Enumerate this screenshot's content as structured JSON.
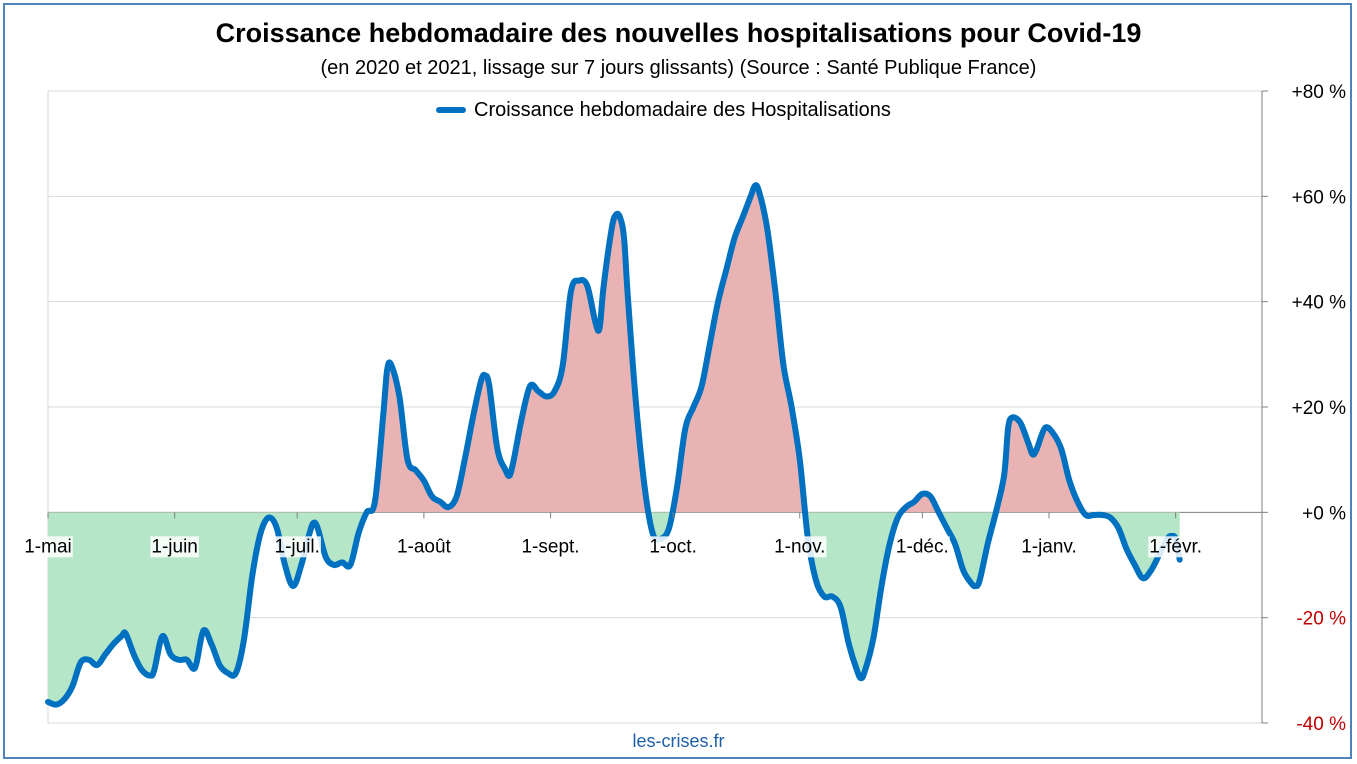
{
  "chart_data": {
    "type": "area",
    "title": "Croissance hebdomadaire des nouvelles hospitalisations pour Covid-19",
    "subtitle": "(en 2020 et 2021, lissage sur 7 jours glissants) (Source : Santé Publique France)",
    "source": "les-crises.fr",
    "ylim": [
      -40,
      80
    ],
    "grid": true,
    "legend_position": "top-center",
    "y_ticks": [
      {
        "value": 80,
        "label": "+80 %",
        "color": "#000000"
      },
      {
        "value": 60,
        "label": "+60 %",
        "color": "#000000"
      },
      {
        "value": 40,
        "label": "+40 %",
        "color": "#000000"
      },
      {
        "value": 20,
        "label": "+20 %",
        "color": "#000000"
      },
      {
        "value": 0,
        "label": "+0 %",
        "color": "#000000"
      },
      {
        "value": -20,
        "label": "-20 %",
        "color": "#c00000"
      },
      {
        "value": -40,
        "label": "-40 %",
        "color": "#c00000"
      }
    ],
    "x_ticks": [
      {
        "day": 0,
        "label": "1-mai"
      },
      {
        "day": 31,
        "label": "1-juin"
      },
      {
        "day": 61,
        "label": "1-juil."
      },
      {
        "day": 92,
        "label": "1-août"
      },
      {
        "day": 123,
        "label": "1-sept."
      },
      {
        "day": 153,
        "label": "1-oct."
      },
      {
        "day": 184,
        "label": "1-nov."
      },
      {
        "day": 214,
        "label": "1-déc."
      },
      {
        "day": 245,
        "label": "1-janv."
      },
      {
        "day": 276,
        "label": "1-févr."
      }
    ],
    "x_max_day": 302,
    "series": [
      {
        "name": "Croissance hebdomadaire des Hospitalisations",
        "color": "#0070c0",
        "positive_fill": "#e9b3b3",
        "negative_fill": "#b5e6c8",
        "points": [
          [
            0,
            -36
          ],
          [
            2,
            -36.5
          ],
          [
            4,
            -35.5
          ],
          [
            6,
            -33
          ],
          [
            8,
            -28.5
          ],
          [
            10,
            -28
          ],
          [
            12,
            -29
          ],
          [
            14,
            -27
          ],
          [
            16,
            -25
          ],
          [
            18,
            -23.5
          ],
          [
            19,
            -23
          ],
          [
            21,
            -27
          ],
          [
            23,
            -30
          ],
          [
            25,
            -31
          ],
          [
            26,
            -30
          ],
          [
            28,
            -23.5
          ],
          [
            30,
            -27
          ],
          [
            32,
            -28
          ],
          [
            34,
            -28
          ],
          [
            36,
            -29.5
          ],
          [
            38,
            -22.5
          ],
          [
            40,
            -25
          ],
          [
            42,
            -29
          ],
          [
            44,
            -30.5
          ],
          [
            46,
            -30.5
          ],
          [
            48,
            -24
          ],
          [
            50,
            -12
          ],
          [
            52,
            -4
          ],
          [
            54,
            -1
          ],
          [
            56,
            -3
          ],
          [
            58,
            -10
          ],
          [
            60,
            -14
          ],
          [
            62,
            -10
          ],
          [
            64,
            -4
          ],
          [
            65,
            -2
          ],
          [
            66,
            -3
          ],
          [
            68,
            -8.5
          ],
          [
            70,
            -10
          ],
          [
            72,
            -9.5
          ],
          [
            74,
            -10
          ],
          [
            76,
            -4
          ],
          [
            78,
            0
          ],
          [
            80,
            2
          ],
          [
            82,
            18
          ],
          [
            83,
            27
          ],
          [
            84,
            28
          ],
          [
            86,
            22
          ],
          [
            88,
            10
          ],
          [
            90,
            8
          ],
          [
            92,
            6
          ],
          [
            94,
            3
          ],
          [
            96,
            2
          ],
          [
            98,
            1
          ],
          [
            100,
            3
          ],
          [
            102,
            10
          ],
          [
            104,
            18
          ],
          [
            106,
            25
          ],
          [
            107,
            26
          ],
          [
            108,
            24
          ],
          [
            110,
            12
          ],
          [
            112,
            8
          ],
          [
            113,
            7
          ],
          [
            114,
            10
          ],
          [
            116,
            18
          ],
          [
            118,
            24
          ],
          [
            120,
            23
          ],
          [
            122,
            22
          ],
          [
            124,
            23
          ],
          [
            126,
            28
          ],
          [
            128,
            42
          ],
          [
            130,
            44
          ],
          [
            132,
            43
          ],
          [
            134,
            36
          ],
          [
            135,
            35
          ],
          [
            136,
            43
          ],
          [
            138,
            54
          ],
          [
            139,
            56.5
          ],
          [
            140,
            56
          ],
          [
            141,
            52
          ],
          [
            142,
            40
          ],
          [
            144,
            20
          ],
          [
            146,
            5
          ],
          [
            148,
            -4
          ],
          [
            150,
            -5
          ],
          [
            152,
            -3
          ],
          [
            154,
            5
          ],
          [
            156,
            16
          ],
          [
            158,
            20
          ],
          [
            160,
            24
          ],
          [
            162,
            32
          ],
          [
            164,
            40
          ],
          [
            166,
            46
          ],
          [
            168,
            52
          ],
          [
            170,
            56
          ],
          [
            172,
            60
          ],
          [
            173,
            62
          ],
          [
            174,
            61
          ],
          [
            176,
            54
          ],
          [
            178,
            42
          ],
          [
            180,
            28
          ],
          [
            182,
            20
          ],
          [
            184,
            10
          ],
          [
            186,
            -5
          ],
          [
            188,
            -13
          ],
          [
            190,
            -16
          ],
          [
            192,
            -16
          ],
          [
            194,
            -18
          ],
          [
            196,
            -25
          ],
          [
            198,
            -30
          ],
          [
            199,
            -31.5
          ],
          [
            200,
            -30
          ],
          [
            202,
            -24
          ],
          [
            204,
            -14
          ],
          [
            206,
            -6
          ],
          [
            208,
            -1
          ],
          [
            210,
            1
          ],
          [
            212,
            2
          ],
          [
            214,
            3.5
          ],
          [
            216,
            3
          ],
          [
            218,
            0
          ],
          [
            220,
            -3
          ],
          [
            222,
            -6
          ],
          [
            224,
            -11
          ],
          [
            226,
            -13.5
          ],
          [
            227,
            -14
          ],
          [
            228,
            -13
          ],
          [
            230,
            -6
          ],
          [
            232,
            0
          ],
          [
            234,
            7
          ],
          [
            235,
            16
          ],
          [
            236,
            18
          ],
          [
            238,
            17
          ],
          [
            240,
            13
          ],
          [
            241,
            11
          ],
          [
            242,
            12
          ],
          [
            244,
            16
          ],
          [
            246,
            15
          ],
          [
            248,
            12
          ],
          [
            250,
            6
          ],
          [
            252,
            2
          ],
          [
            254,
            -0.5
          ],
          [
            256,
            -0.5
          ],
          [
            258,
            -0.5
          ],
          [
            260,
            -1
          ],
          [
            262,
            -3
          ],
          [
            264,
            -7
          ],
          [
            266,
            -10
          ],
          [
            268,
            -12.5
          ],
          [
            270,
            -11
          ],
          [
            272,
            -8
          ],
          [
            274,
            -5
          ],
          [
            275,
            -4.5
          ],
          [
            276,
            -5
          ],
          [
            277,
            -9
          ]
        ]
      }
    ]
  }
}
